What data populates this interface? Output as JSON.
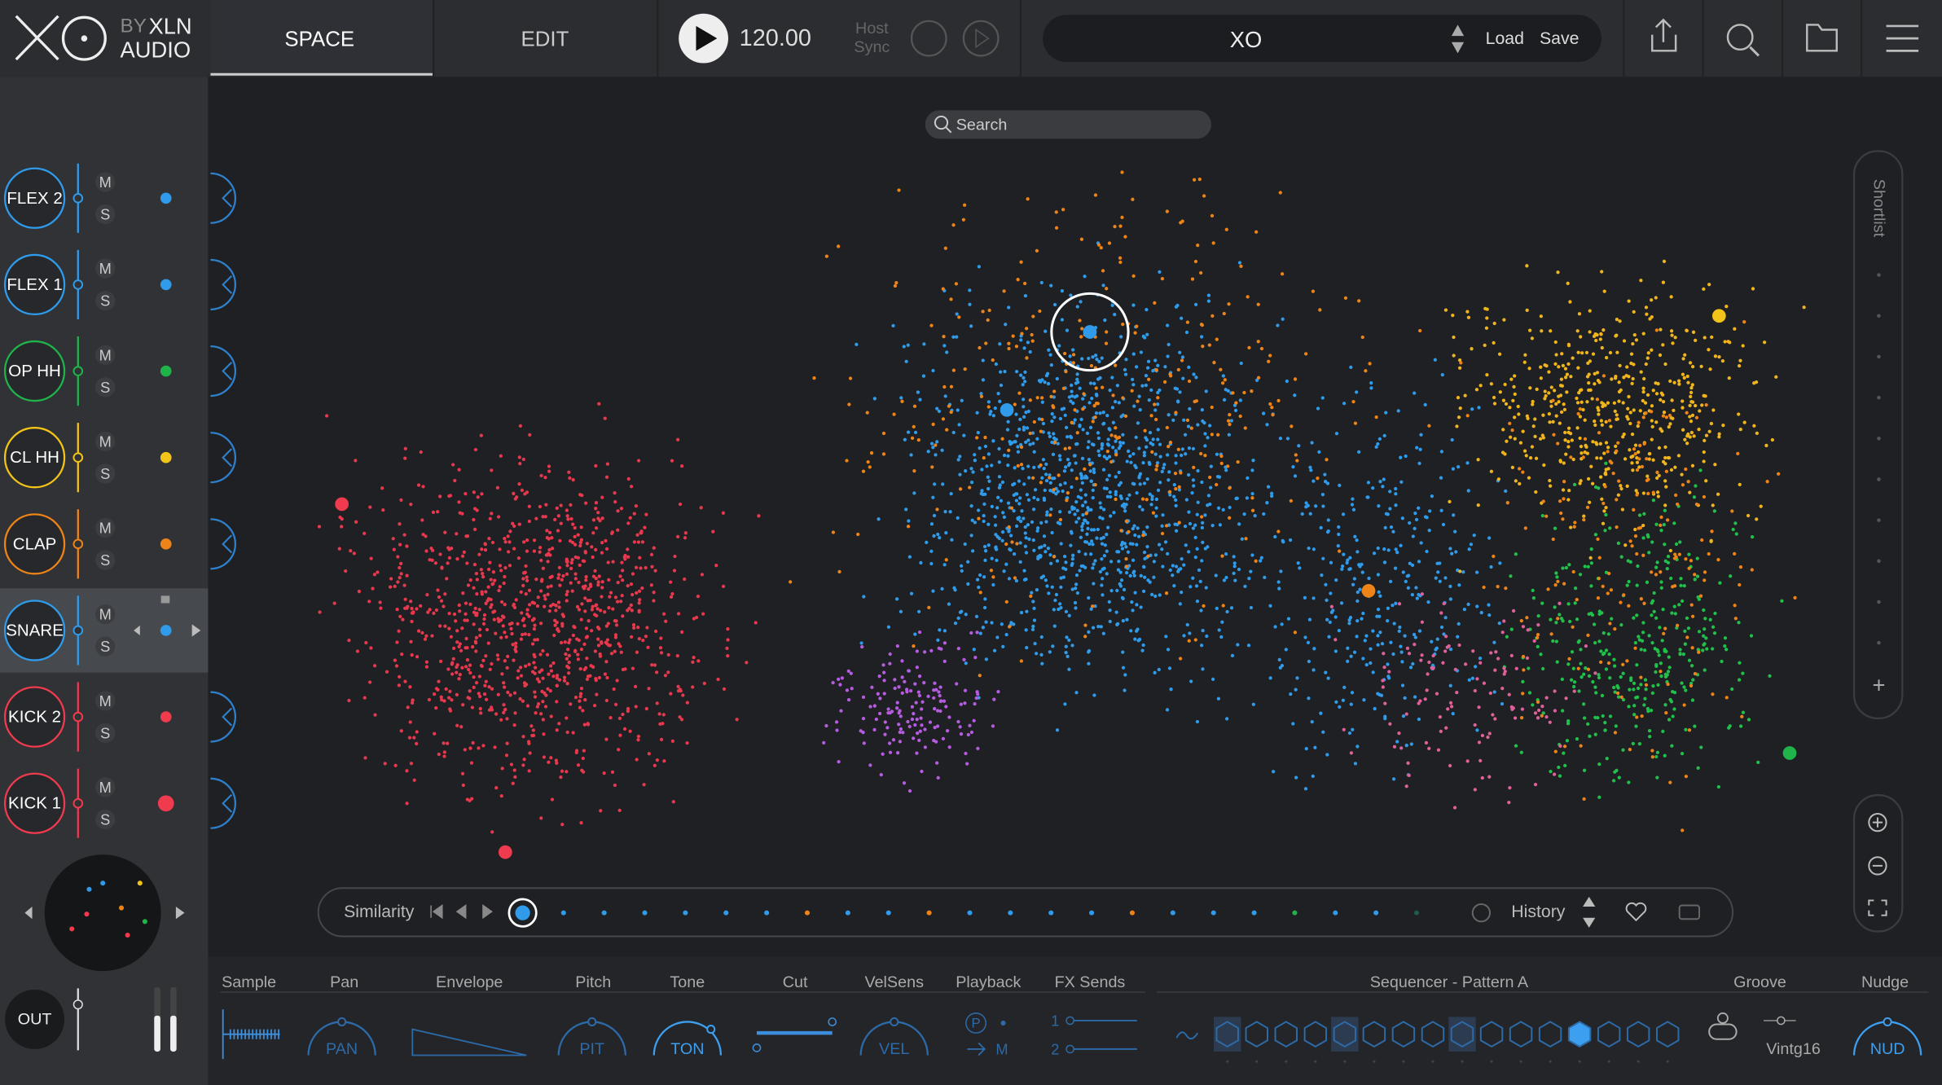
{
  "header": {
    "brand": {
      "by": "BY",
      "xln": "XLN",
      "audio": "AUDIO"
    },
    "tabs": [
      "SPACE",
      "EDIT"
    ],
    "tempo": "120.00",
    "host_sync": [
      "Host",
      "Sync"
    ],
    "preset": "XO",
    "load": "Load",
    "save": "Save"
  },
  "space": {
    "search": "Search",
    "shortlist": "Shortlist",
    "shortlist_add": "+"
  },
  "tracks": [
    {
      "name": "FLEX 2",
      "color": "#2f9bea",
      "mute": "M",
      "solo": "S"
    },
    {
      "name": "FLEX 1",
      "color": "#2f9bea",
      "mute": "M",
      "solo": "S"
    },
    {
      "name": "OP HH",
      "color": "#1fb34a",
      "mute": "M",
      "solo": "S"
    },
    {
      "name": "CL HH",
      "color": "#f2c318",
      "mute": "M",
      "solo": "S"
    },
    {
      "name": "CLAP",
      "color": "#ee8417",
      "mute": "M",
      "solo": "S"
    },
    {
      "name": "SNARE",
      "color": "#2f9bea",
      "mute": "M",
      "solo": "S"
    },
    {
      "name": "KICK 2",
      "color": "#ef3b4d",
      "mute": "M",
      "solo": "S"
    },
    {
      "name": "KICK 1",
      "color": "#ef3b4d",
      "mute": "M",
      "solo": "S"
    }
  ],
  "output": "OUT",
  "similarity": {
    "label": "Similarity",
    "history": "History"
  },
  "controls": {
    "sections": [
      "Sample",
      "Pan",
      "Envelope",
      "Pitch",
      "Tone",
      "Cut",
      "VelSens",
      "Playback",
      "FX Sends",
      "Sequencer - Pattern A",
      "Groove",
      "Nudge"
    ],
    "knobs": [
      "PAN",
      "PIT",
      "TON",
      "VEL",
      "NUD"
    ],
    "playback": [
      "P",
      "M"
    ],
    "fx_sends": [
      "1",
      "2"
    ],
    "groove": "Vintg16"
  }
}
